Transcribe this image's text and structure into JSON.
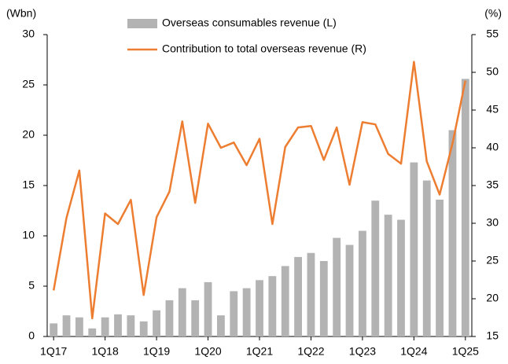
{
  "chart_data": {
    "type": "bar_line",
    "y_label": "(Wbn)",
    "y2_label": "(%)",
    "legend": "top",
    "categories": [
      "1Q17",
      null,
      null,
      null,
      "1Q18",
      null,
      null,
      null,
      "1Q19",
      null,
      null,
      null,
      "1Q20",
      null,
      null,
      null,
      "1Q21",
      null,
      null,
      null,
      "1Q22",
      null,
      null,
      null,
      "1Q23",
      null,
      null,
      null,
      "1Q24",
      null,
      null,
      null,
      "1Q25"
    ],
    "series": [
      {
        "name": "Overseas consumables revenue (L)",
        "type": "bar",
        "color": "#b3b3b3",
        "values": [
          1.3,
          2.1,
          1.9,
          0.8,
          1.9,
          2.2,
          2.1,
          1.5,
          2.6,
          3.6,
          4.8,
          3.6,
          5.4,
          2.1,
          4.5,
          4.8,
          5.6,
          6.0,
          7.0,
          7.9,
          8.3,
          7.5,
          9.8,
          9.1,
          10.5,
          13.5,
          12.1,
          11.6,
          17.3,
          15.5,
          13.6,
          20.5,
          25.6
        ]
      },
      {
        "name": "Contribution to total overseas revenue (R)",
        "type": "line",
        "axis": "y2",
        "color": "#ed7d31",
        "values": [
          21.1,
          30.7,
          37.0,
          17.4,
          31.3,
          29.9,
          33.1,
          20.5,
          30.8,
          34.2,
          43.5,
          32.7,
          43.2,
          40.0,
          40.7,
          37.7,
          41.2,
          29.9,
          40.1,
          42.7,
          42.9,
          38.4,
          42.7,
          35.1,
          43.4,
          43.1,
          39.2,
          37.9,
          51.4,
          38.2,
          33.8,
          40.6,
          48.9
        ]
      }
    ],
    "ylim": [
      0,
      30
    ],
    "yticks": [
      0,
      5,
      10,
      15,
      20,
      25,
      30
    ],
    "y2lim": [
      15,
      55
    ],
    "y2ticks": [
      15,
      20,
      25,
      30,
      35,
      40,
      45,
      50,
      55
    ]
  }
}
